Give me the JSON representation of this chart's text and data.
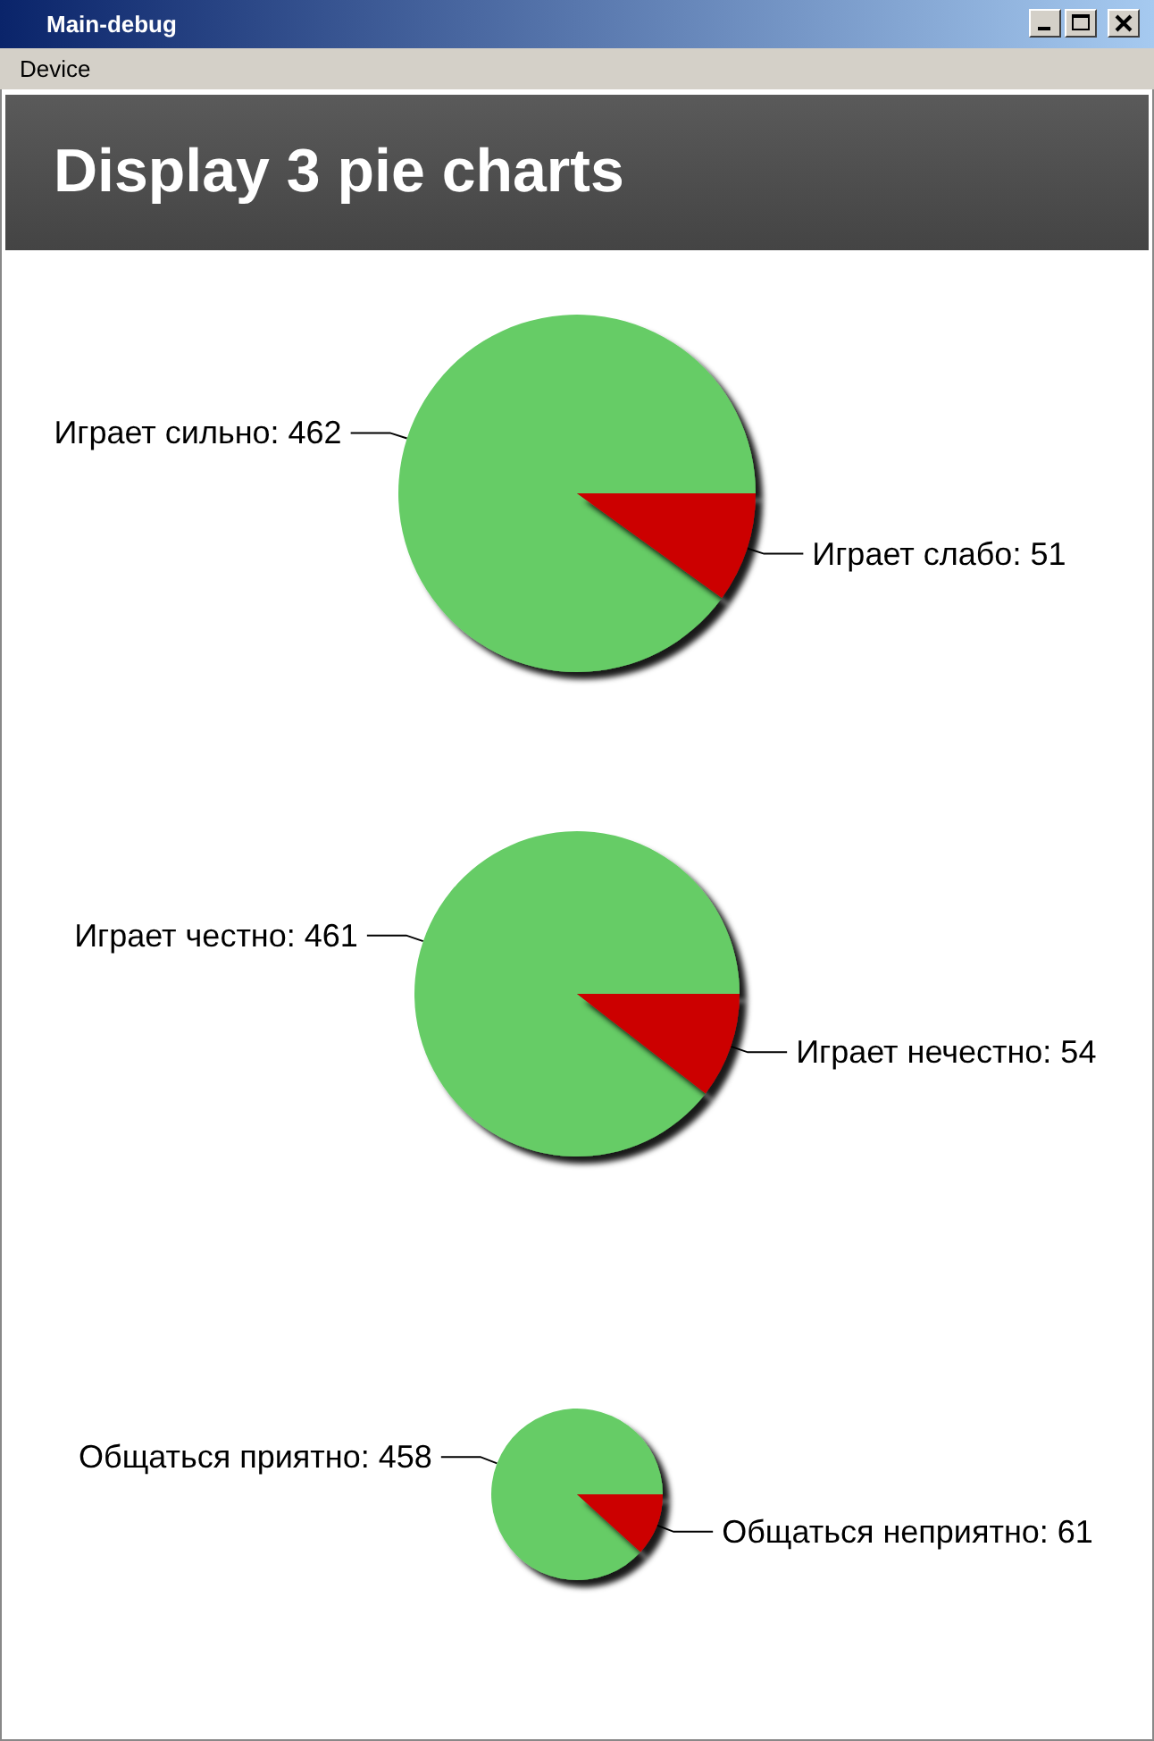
{
  "chart_data": [
    {
      "type": "pie",
      "title": "Display 3 pie charts",
      "annotations": [
        "Main-debug",
        "Device"
      ],
      "categories": [
        "Играет сильно",
        "Играет слабо"
      ],
      "values": [
        462,
        51
      ],
      "value_labels": [
        ": 462",
        ": 51"
      ],
      "colors": [
        "#66cc66",
        "#cc0000"
      ]
    },
    {
      "type": "pie",
      "categories": [
        "Играет честно",
        "Играет нечестно"
      ],
      "values": [
        461,
        54
      ],
      "value_labels": [
        ": 461",
        ": 54"
      ],
      "colors": [
        "#66cc66",
        "#cc0000"
      ]
    },
    {
      "type": "pie",
      "categories": [
        "Общаться приятно",
        "Общаться неприятно"
      ],
      "values": [
        458,
        61
      ],
      "value_labels": [
        ": 458",
        ": 61"
      ],
      "colors": [
        "#66cc66",
        "#cc0000"
      ]
    }
  ]
}
